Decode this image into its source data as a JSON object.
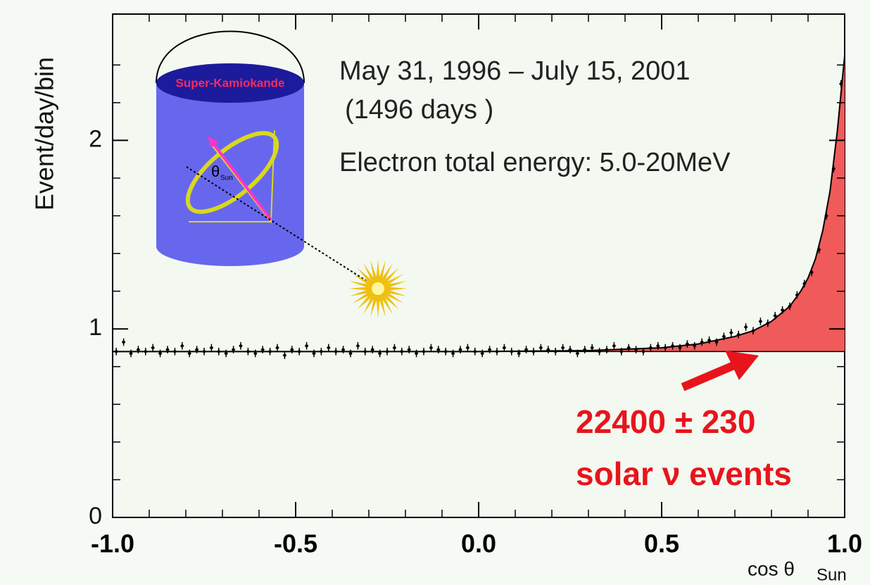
{
  "chart_data": {
    "type": "scatter",
    "y_label": "Event/day/bin",
    "x_label": "cos θ",
    "x_label_sub": "Sun",
    "xlim": [
      -1,
      1
    ],
    "ylim": [
      0,
      2.67
    ],
    "xticks": [
      {
        "value": -1,
        "label": "-1.0"
      },
      {
        "value": -0.5,
        "label": "-0.5"
      },
      {
        "value": 0,
        "label": "0.0"
      },
      0.5,
      {
        "value": 1,
        "label": "1.0"
      }
    ],
    "yticks": [
      0,
      1,
      2
    ],
    "xminorticks": [
      -0.9,
      -0.8,
      -0.7,
      -0.6,
      -0.4,
      -0.3,
      -0.2,
      -0.1,
      0.1,
      0.2,
      0.3,
      0.4,
      0.6,
      0.7,
      0.8,
      0.9
    ],
    "yminorticks": [
      0.2,
      0.4,
      0.6,
      0.8,
      1.2,
      1.4,
      1.6,
      1.8,
      2.2,
      2.4
    ],
    "points": {
      "color": "#000000",
      "x": [
        -0.99,
        -0.97,
        -0.95,
        -0.93,
        -0.91,
        -0.89,
        -0.87,
        -0.85,
        -0.83,
        -0.81,
        -0.79,
        -0.77,
        -0.75,
        -0.73,
        -0.71,
        -0.69,
        -0.67,
        -0.65,
        -0.63,
        -0.61,
        -0.59,
        -0.57,
        -0.55,
        -0.53,
        -0.51,
        -0.49,
        -0.47,
        -0.45,
        -0.43,
        -0.41,
        -0.39,
        -0.37,
        -0.35,
        -0.33,
        -0.31,
        -0.29,
        -0.27,
        -0.25,
        -0.23,
        -0.21,
        -0.19,
        -0.17,
        -0.15,
        -0.13,
        -0.11,
        -0.09,
        -0.07,
        -0.05,
        -0.03,
        -0.01,
        0.01,
        0.03,
        0.05,
        0.07,
        0.09,
        0.11,
        0.13,
        0.15,
        0.17,
        0.19,
        0.21,
        0.23,
        0.25,
        0.27,
        0.29,
        0.31,
        0.33,
        0.35,
        0.37,
        0.39,
        0.41,
        0.43,
        0.45,
        0.47,
        0.49,
        0.51,
        0.53,
        0.55,
        0.57,
        0.59,
        0.61,
        0.63,
        0.65,
        0.67,
        0.69,
        0.71,
        0.73,
        0.75,
        0.77,
        0.79,
        0.81,
        0.83,
        0.85,
        0.87,
        0.89,
        0.91,
        0.93,
        0.95,
        0.97,
        0.99
      ],
      "values": [
        0.88,
        0.93,
        0.87,
        0.89,
        0.88,
        0.9,
        0.87,
        0.89,
        0.88,
        0.91,
        0.87,
        0.89,
        0.88,
        0.9,
        0.88,
        0.87,
        0.89,
        0.91,
        0.88,
        0.87,
        0.89,
        0.88,
        0.9,
        0.86,
        0.89,
        0.88,
        0.91,
        0.87,
        0.88,
        0.9,
        0.88,
        0.89,
        0.87,
        0.91,
        0.88,
        0.89,
        0.87,
        0.88,
        0.9,
        0.88,
        0.89,
        0.87,
        0.88,
        0.9,
        0.89,
        0.88,
        0.87,
        0.89,
        0.9,
        0.88,
        0.87,
        0.89,
        0.88,
        0.9,
        0.88,
        0.87,
        0.89,
        0.88,
        0.9,
        0.89,
        0.88,
        0.9,
        0.89,
        0.87,
        0.89,
        0.9,
        0.88,
        0.89,
        0.91,
        0.88,
        0.9,
        0.89,
        0.88,
        0.9,
        0.91,
        0.9,
        0.91,
        0.9,
        0.92,
        0.91,
        0.93,
        0.94,
        0.93,
        0.96,
        0.98,
        0.97,
        1.01,
        0.99,
        1.04,
        1.03,
        1.07,
        1.1,
        1.12,
        1.18,
        1.24,
        1.3,
        1.42,
        1.6,
        1.85,
        2.3
      ],
      "error": 0.02
    },
    "fit": {
      "color": "#000000",
      "x": [
        -1,
        0,
        0.3,
        0.5,
        0.6,
        0.7,
        0.75,
        0.8,
        0.85,
        0.88,
        0.9,
        0.92,
        0.94,
        0.96,
        0.98,
        1.0
      ],
      "values": [
        0.88,
        0.88,
        0.885,
        0.9,
        0.92,
        0.96,
        0.99,
        1.04,
        1.12,
        1.2,
        1.27,
        1.37,
        1.52,
        1.73,
        2.05,
        2.45
      ]
    },
    "background": 0.88,
    "signal_color": "#f05a5a",
    "annotations": {
      "period": "May 31, 1996 – July 15, 2001",
      "days": "(1496 days )",
      "energy": "Electron total energy: 5.0-20MeV",
      "count": "22400 ± 230",
      "events": "solar ν events",
      "detector": "Super-Kamiokande",
      "theta": "θ",
      "theta_sub": "Sun"
    }
  }
}
